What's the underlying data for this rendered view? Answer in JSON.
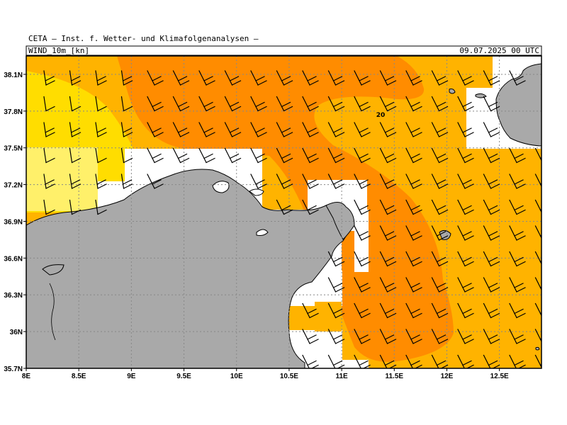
{
  "header": {
    "institute": "CETA – Inst. f. Wetter- und Klimafolgenanalysen –",
    "field": "WIND_10m_[kn]",
    "valid_time": "09.07.2025 00 UTC"
  },
  "map": {
    "lon_range": [
      8.0,
      12.9
    ],
    "lat_range": [
      35.7,
      38.25
    ],
    "lon_ticks": [
      {
        "v": 8.0,
        "label": "8E"
      },
      {
        "v": 8.5,
        "label": "8.5E"
      },
      {
        "v": 9.0,
        "label": "9E"
      },
      {
        "v": 9.5,
        "label": "9.5E"
      },
      {
        "v": 10.0,
        "label": "10E"
      },
      {
        "v": 10.5,
        "label": "10.5E"
      },
      {
        "v": 11.0,
        "label": "11E"
      },
      {
        "v": 11.5,
        "label": "11.5E"
      },
      {
        "v": 12.0,
        "label": "12E"
      },
      {
        "v": 12.5,
        "label": "12.5E"
      }
    ],
    "lat_ticks": [
      {
        "v": 38.1,
        "label": "38.1N"
      },
      {
        "v": 37.8,
        "label": "37.8N"
      },
      {
        "v": 37.5,
        "label": "37.5N"
      },
      {
        "v": 37.2,
        "label": "37.2N"
      },
      {
        "v": 36.9,
        "label": "36.9N"
      },
      {
        "v": 36.6,
        "label": "36.6N"
      },
      {
        "v": 36.3,
        "label": "36.3N"
      },
      {
        "v": 36.0,
        "label": "36N"
      },
      {
        "v": 35.7,
        "label": "35.7N"
      }
    ],
    "contour_label": "20",
    "colors": {
      "land": "#a9a9a9",
      "sea_missing": "#ffffff",
      "speed_10_12": "#fff06a",
      "speed_12_15": "#ffdd00",
      "speed_15_20": "#ffb300",
      "speed_20_25": "#ff8c00"
    }
  }
}
